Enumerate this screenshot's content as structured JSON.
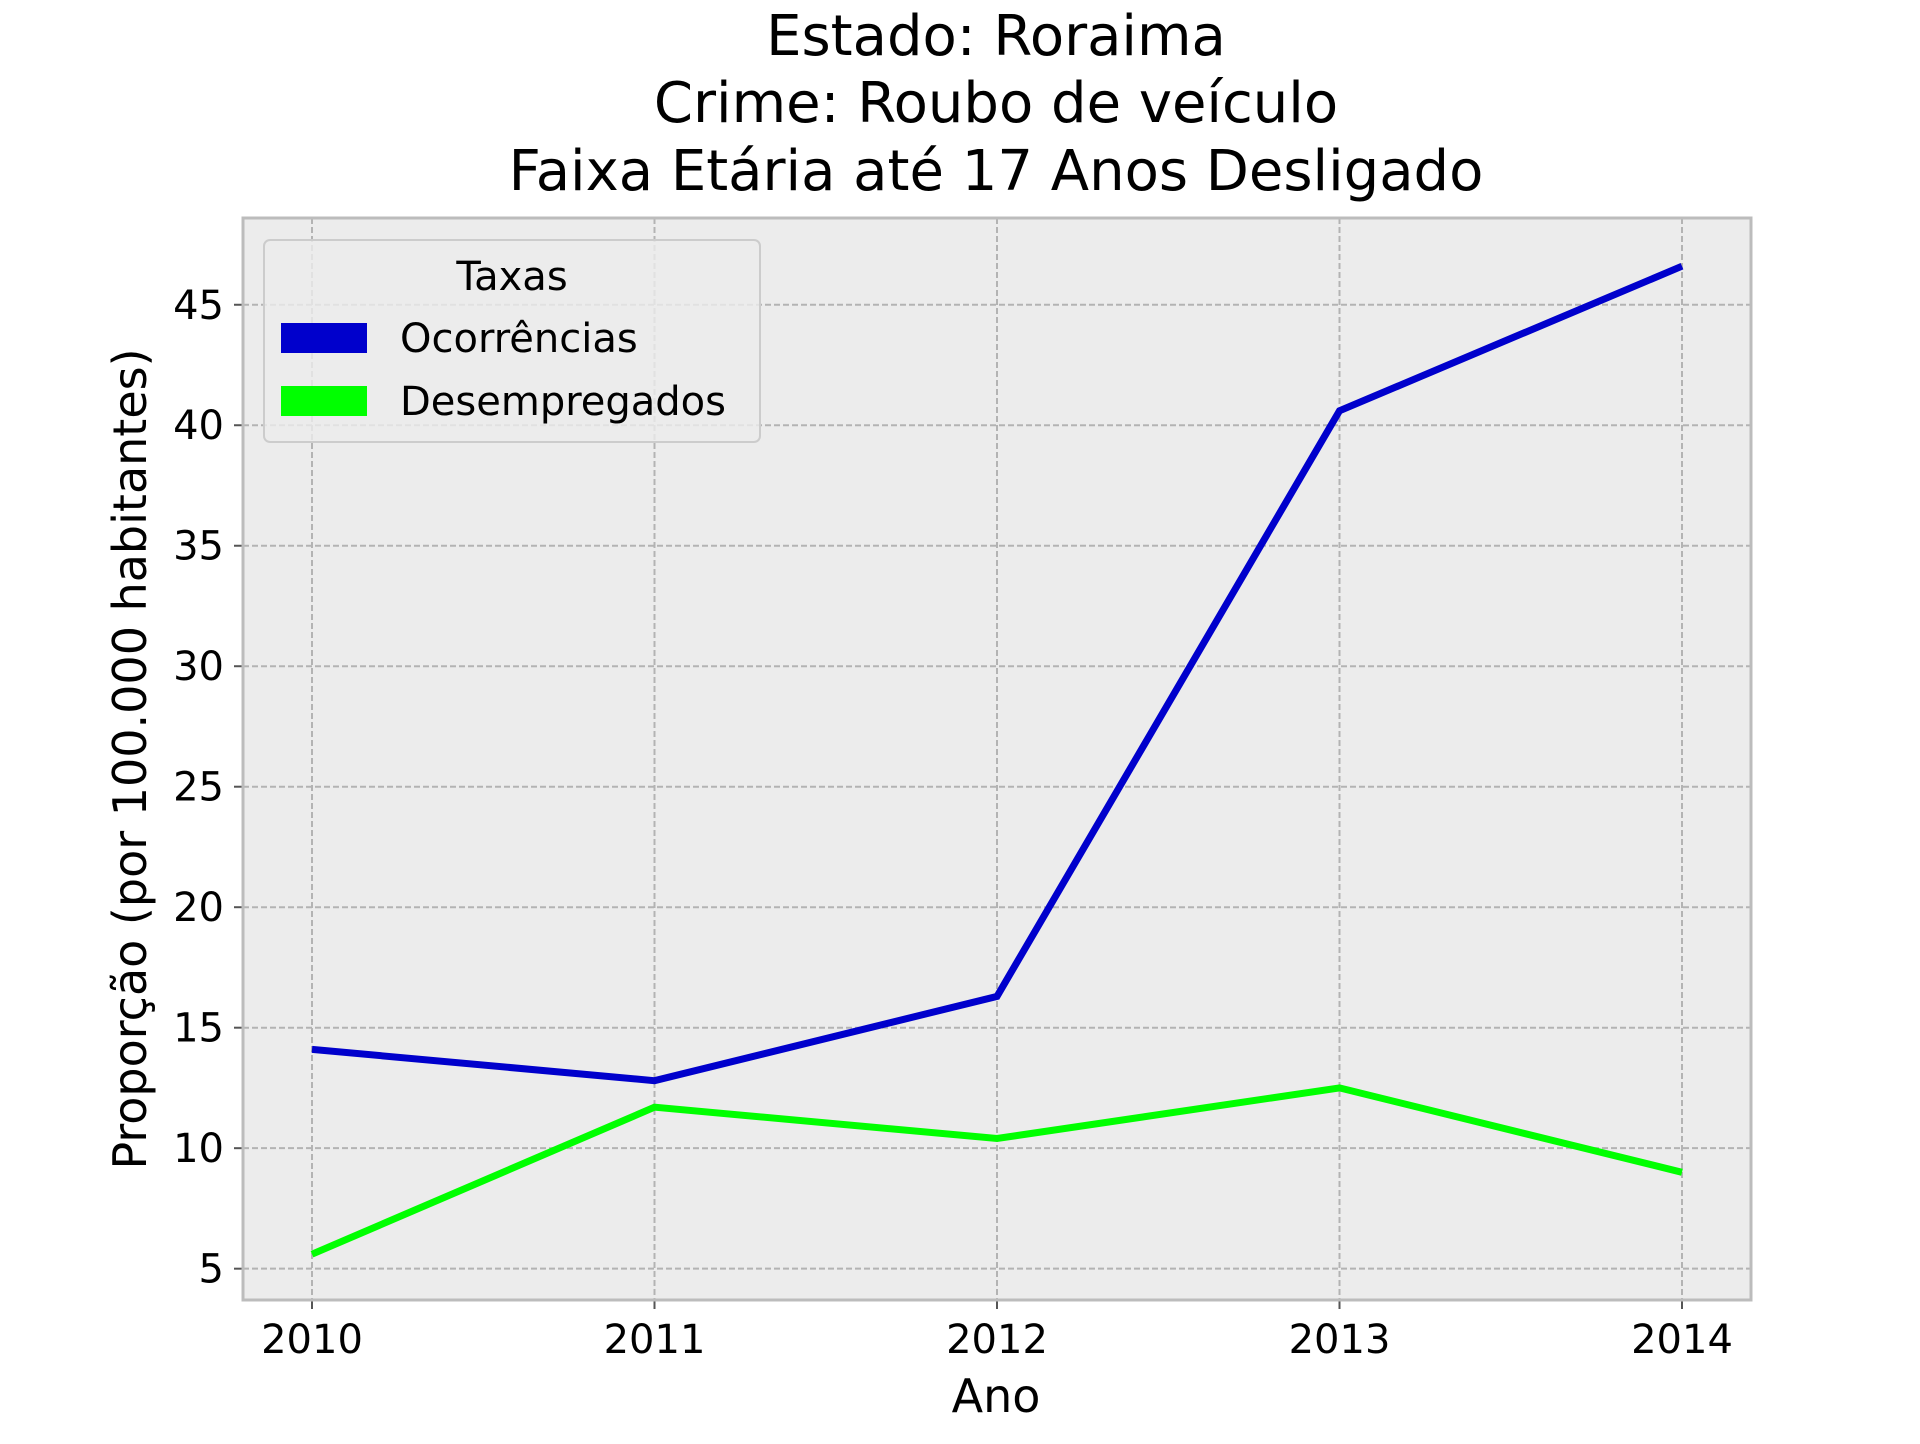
{
  "chart_data": {
    "type": "line",
    "title_lines": [
      "Estado: Roraima",
      "Crime: Roubo de veículo",
      "Faixa Etária até 17 Anos   Desligado"
    ],
    "xlabel": "Ano",
    "ylabel": "Proporção (por 100.000 habitantes)",
    "x": [
      "2010",
      "2011",
      "2012",
      "2013",
      "2014"
    ],
    "yticks": [
      "5",
      "10",
      "15",
      "20",
      "25",
      "30",
      "35",
      "40",
      "45"
    ],
    "ylim": [
      3.7,
      48.6
    ],
    "grid": true,
    "legend": {
      "title": "Taxas",
      "position": "top-left"
    },
    "series": [
      {
        "name": "Ocorrências",
        "color": "#0000cc",
        "values": [
          14.1,
          12.8,
          16.3,
          40.6,
          46.6
        ]
      },
      {
        "name": "Desempregados",
        "color": "#00ff00",
        "values": [
          5.6,
          11.7,
          10.4,
          12.5,
          9.0
        ]
      }
    ],
    "colors": {
      "plot_background": "#ececec",
      "grid": "#b3b3b3",
      "axes_frame": "#bcbcbc"
    }
  }
}
